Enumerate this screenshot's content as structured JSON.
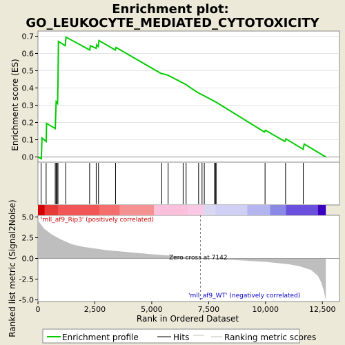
{
  "chart_data": {
    "type": "line",
    "title_line1": "Enrichment plot:",
    "title_line2": "GO_LEUKOCYTE_MEDIATED_CYTOTOXICITY",
    "es_panel": {
      "ylabel": "Enrichment score (ES)",
      "ylim": [
        -0.03,
        0.73
      ],
      "yticks": [
        "0.0",
        "0.1",
        "0.2",
        "0.3",
        "0.4",
        "0.5",
        "0.6",
        "0.7"
      ],
      "ytick_values": [
        0.0,
        0.1,
        0.2,
        0.3,
        0.4,
        0.5,
        0.6,
        0.7
      ],
      "line_color": "#00cc00",
      "profile": [
        [
          0,
          0.0
        ],
        [
          150,
          -0.01
        ],
        [
          180,
          0.11
        ],
        [
          360,
          0.09
        ],
        [
          380,
          0.195
        ],
        [
          760,
          0.165
        ],
        [
          780,
          0.24
        ],
        [
          800,
          0.32
        ],
        [
          860,
          0.31
        ],
        [
          880,
          0.42
        ],
        [
          900,
          0.67
        ],
        [
          1200,
          0.645
        ],
        [
          1230,
          0.695
        ],
        [
          2280,
          0.62
        ],
        [
          2300,
          0.645
        ],
        [
          2560,
          0.63
        ],
        [
          2580,
          0.65
        ],
        [
          2650,
          0.64
        ],
        [
          2680,
          0.675
        ],
        [
          3400,
          0.62
        ],
        [
          3430,
          0.635
        ],
        [
          5400,
          0.485
        ],
        [
          5700,
          0.475
        ],
        [
          6500,
          0.42
        ],
        [
          7000,
          0.375
        ],
        [
          7800,
          0.32
        ],
        [
          9950,
          0.145
        ],
        [
          10000,
          0.155
        ],
        [
          10850,
          0.09
        ],
        [
          10900,
          0.105
        ],
        [
          11650,
          0.045
        ],
        [
          11700,
          0.075
        ],
        [
          12650,
          0.0
        ]
      ]
    },
    "hits": [
      140,
      360,
      760,
      800,
      840,
      880,
      1220,
      2270,
      2560,
      2660,
      3410,
      5440,
      5720,
      6380,
      6510,
      7060,
      7210,
      7310,
      7760,
      7800,
      7830,
      9980,
      10880,
      11660
    ],
    "color_bar": {
      "segments": [
        {
          "start": 0,
          "end": 300,
          "color": "#d40000"
        },
        {
          "start": 300,
          "end": 900,
          "color": "#e83838"
        },
        {
          "start": 900,
          "end": 2700,
          "color": "#f25555"
        },
        {
          "start": 2700,
          "end": 3600,
          "color": "#f46e6e"
        },
        {
          "start": 3600,
          "end": 5100,
          "color": "#f59191"
        },
        {
          "start": 5100,
          "end": 6600,
          "color": "#fbc0dc"
        },
        {
          "start": 6600,
          "end": 7300,
          "color": "#f9c8e4"
        },
        {
          "start": 7300,
          "end": 7800,
          "color": "#d8d8f2"
        },
        {
          "start": 7800,
          "end": 9200,
          "color": "#d0d0f6"
        },
        {
          "start": 9200,
          "end": 10200,
          "color": "#b4b4ee"
        },
        {
          "start": 10200,
          "end": 10900,
          "color": "#8a8ae6"
        },
        {
          "start": 10900,
          "end": 12300,
          "color": "#6b50dd"
        },
        {
          "start": 12300,
          "end": 12650,
          "color": "#3a00c0"
        }
      ]
    },
    "metric_panel": {
      "ylabel": "Ranked list metric (Signal2Noise)",
      "ylim": [
        -5.2,
        5.2
      ],
      "yticks": [
        "5.0",
        "2.5",
        "0.0",
        "-2.5",
        "-5.0"
      ],
      "ytick_values": [
        5.0,
        2.5,
        0.0,
        -2.5,
        -5.0
      ],
      "fill_color": "#bebebe",
      "curve": [
        [
          0,
          4.6
        ],
        [
          100,
          4.2
        ],
        [
          300,
          3.5
        ],
        [
          600,
          2.9
        ],
        [
          1000,
          2.3
        ],
        [
          1500,
          1.7
        ],
        [
          2000,
          1.4
        ],
        [
          3000,
          1.0
        ],
        [
          4000,
          0.75
        ],
        [
          5000,
          0.5
        ],
        [
          6000,
          0.3
        ],
        [
          7142,
          0.0
        ],
        [
          8000,
          -0.12
        ],
        [
          9000,
          -0.25
        ],
        [
          10000,
          -0.42
        ],
        [
          11000,
          -0.7
        ],
        [
          11500,
          -0.95
        ],
        [
          12000,
          -1.4
        ],
        [
          12300,
          -2.1
        ],
        [
          12450,
          -2.9
        ],
        [
          12550,
          -3.8
        ],
        [
          12650,
          -5.0
        ]
      ],
      "zero_cross_x": 7142,
      "zero_cross_label": "Zero cross at 7142",
      "pos_label": "'mll_af9_Rip3' (positively correlated)",
      "neg_label": "'mll_af9_WT' (negatively correlated)",
      "pos_color": "#cc0000",
      "neg_color": "#0000cc"
    },
    "xaxis": {
      "xlabel": "Rank in Ordered Dataset",
      "xlim": [
        0,
        13250
      ],
      "xticks": [
        "0",
        "2,500",
        "5,000",
        "7,500",
        "10,000",
        "12,500"
      ],
      "xtick_values": [
        0,
        2500,
        5000,
        7500,
        10000,
        12500
      ]
    },
    "legend": {
      "items": [
        "Enrichment profile",
        "Hits",
        "Ranking metric scores"
      ],
      "placement": "bottom"
    }
  }
}
